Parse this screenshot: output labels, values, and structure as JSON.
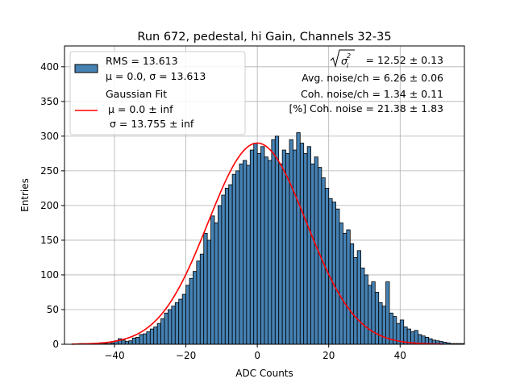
{
  "chart_data": {
    "type": "bar",
    "title": "Run 672, pedestal, hi Gain, Channels 32-35",
    "xlabel": "ADC Counts",
    "ylabel": "Entries",
    "xlim": [
      -54,
      58
    ],
    "ylim": [
      0,
      430
    ],
    "xticks": [
      -40,
      -20,
      0,
      20,
      40
    ],
    "yticks": [
      0,
      50,
      100,
      150,
      200,
      250,
      300,
      350,
      400
    ],
    "grid": true,
    "legend_placement": "top-left",
    "bin_width": 1,
    "histogram": {
      "name_line1": "RMS = 13.613",
      "name_line2": "μ = 0.0, σ = 13.613",
      "color": "#4682b4",
      "edge_color": "#000000",
      "bin_start": -50,
      "values": [
        1,
        1,
        0,
        1,
        1,
        1,
        2,
        1,
        1,
        2,
        5,
        8,
        6,
        4,
        5,
        9,
        10,
        14,
        15,
        18,
        22,
        25,
        30,
        37,
        45,
        50,
        55,
        60,
        65,
        72,
        85,
        95,
        105,
        120,
        130,
        160,
        150,
        185,
        175,
        200,
        215,
        225,
        230,
        245,
        250,
        260,
        265,
        258,
        280,
        290,
        275,
        285,
        270,
        265,
        295,
        300,
        260,
        280,
        275,
        295,
        280,
        305,
        290,
        275,
        285,
        260,
        270,
        255,
        240,
        225,
        210,
        205,
        195,
        175,
        160,
        165,
        145,
        125,
        135,
        110,
        100,
        85,
        90,
        75,
        60,
        55,
        90,
        45,
        40,
        30,
        35,
        25,
        22,
        18,
        20,
        14,
        12,
        10,
        8,
        6,
        5,
        4,
        3,
        2,
        1,
        1,
        1,
        1
      ]
    },
    "fit": {
      "title": "Gaussian Fit",
      "mu_label": "μ = 0.0 ± inf",
      "sigma_label": "σ = 13.755 ± inf",
      "color": "#ff0000",
      "mu": 0.0,
      "sigma": 13.755,
      "amplitude": 290,
      "x_range": [
        -52,
        52
      ]
    },
    "annotations": {
      "sigma_sq_value": "= 12.52 ± 0.13",
      "avg_noise": "Avg. noise/ch = 6.26 ± 0.06",
      "coh_noise": "Coh. noise/ch = 1.34 ± 0.11",
      "coh_noise_pct": "[%] Coh. noise = 21.38 ± 1.83"
    }
  }
}
